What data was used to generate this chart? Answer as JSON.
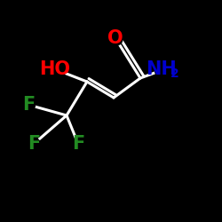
{
  "background_color": "#000000",
  "bond_color": "#ffffff",
  "atom_colors": {
    "O": "#ff0000",
    "N": "#0000cd",
    "F": "#228b22",
    "C": "#ffffff"
  },
  "bg": "#000000",
  "fs": 15,
  "fs_sub": 10,
  "lw": 2.2
}
